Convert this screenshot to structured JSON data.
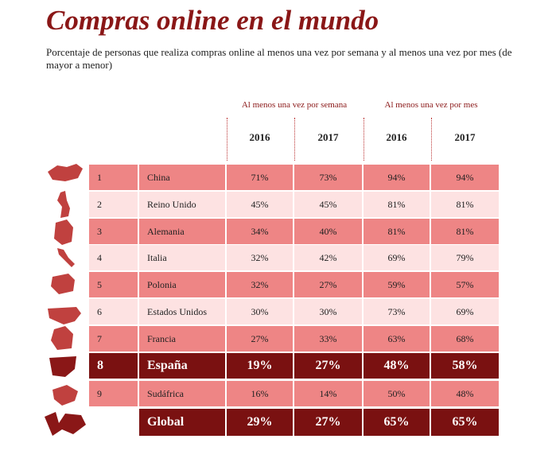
{
  "header": {
    "title": "Compras online en el mundo",
    "subtitle": "Porcentaje de personas que realiza compras online al menos una vez por semana y al menos una vez por mes (de mayor a menor)"
  },
  "table": {
    "groups": [
      "Al menos una vez por semana",
      "Al menos una vez por mes"
    ],
    "years": [
      "2016",
      "2017",
      "2016",
      "2017"
    ],
    "rows": [
      {
        "rank": "1",
        "country": "China",
        "values": [
          "71%",
          "73%",
          "94%",
          "94%"
        ]
      },
      {
        "rank": "2",
        "country": "Reino Unido",
        "values": [
          "45%",
          "45%",
          "81%",
          "81%"
        ]
      },
      {
        "rank": "3",
        "country": "Alemania",
        "values": [
          "34%",
          "40%",
          "81%",
          "81%"
        ]
      },
      {
        "rank": "4",
        "country": "Italia",
        "values": [
          "32%",
          "42%",
          "69%",
          "79%"
        ]
      },
      {
        "rank": "5",
        "country": "Polonia",
        "values": [
          "32%",
          "27%",
          "59%",
          "57%"
        ]
      },
      {
        "rank": "6",
        "country": "Estados Unidos",
        "values": [
          "30%",
          "30%",
          "73%",
          "69%"
        ]
      },
      {
        "rank": "7",
        "country": "Francia",
        "values": [
          "27%",
          "33%",
          "63%",
          "68%"
        ]
      },
      {
        "rank": "8",
        "country": "España",
        "values": [
          "19%",
          "27%",
          "48%",
          "58%"
        ]
      },
      {
        "rank": "9",
        "country": "Sudáfrica",
        "values": [
          "16%",
          "14%",
          "50%",
          "48%"
        ]
      }
    ],
    "total": {
      "label": "Global",
      "values": [
        "29%",
        "27%",
        "65%",
        "65%"
      ]
    }
  }
}
